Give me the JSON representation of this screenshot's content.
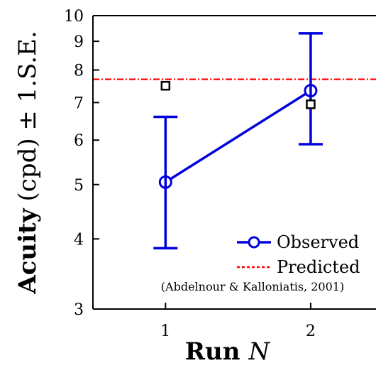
{
  "chart_data": {
    "type": "line",
    "title": "",
    "xlabel": "Run",
    "xlabel_var": "N",
    "ylabel": "Acuity",
    "ylabel_rest": "(cpd) ± 1.S.E.",
    "y_scale": "log",
    "xlim": [
      0.5,
      2.45
    ],
    "ylim": [
      3,
      10
    ],
    "x_ticks": [
      1,
      2
    ],
    "x_tick_labels": [
      "1",
      "2"
    ],
    "y_ticks": [
      3,
      4,
      5,
      6,
      7,
      8,
      9,
      10
    ],
    "y_tick_labels": [
      "3",
      "4",
      "5",
      "6",
      "7",
      "8",
      "9",
      "10"
    ],
    "grid": false,
    "legend_placement": "lower-right",
    "series": [
      {
        "name": "Observed",
        "style": "solid line with open circle markers and error bars",
        "color": "#0000dd",
        "x": [
          1,
          2
        ],
        "y": [
          5.05,
          7.35
        ],
        "err_low": [
          3.85,
          5.9
        ],
        "err_high": [
          6.6,
          9.3
        ]
      },
      {
        "name": "Predicted",
        "style": "dash-dot horizontal line",
        "color": "#ff0000",
        "y_value": 7.7
      },
      {
        "name": "",
        "style": "open square markers",
        "color": "#000000",
        "x": [
          1,
          2
        ],
        "y": [
          7.5,
          6.95
        ]
      }
    ],
    "legend": {
      "entries": [
        {
          "label": "Observed"
        },
        {
          "label": "Predicted"
        }
      ],
      "citation": "(Abdelnour & Kalloniatis, 2001)"
    }
  }
}
